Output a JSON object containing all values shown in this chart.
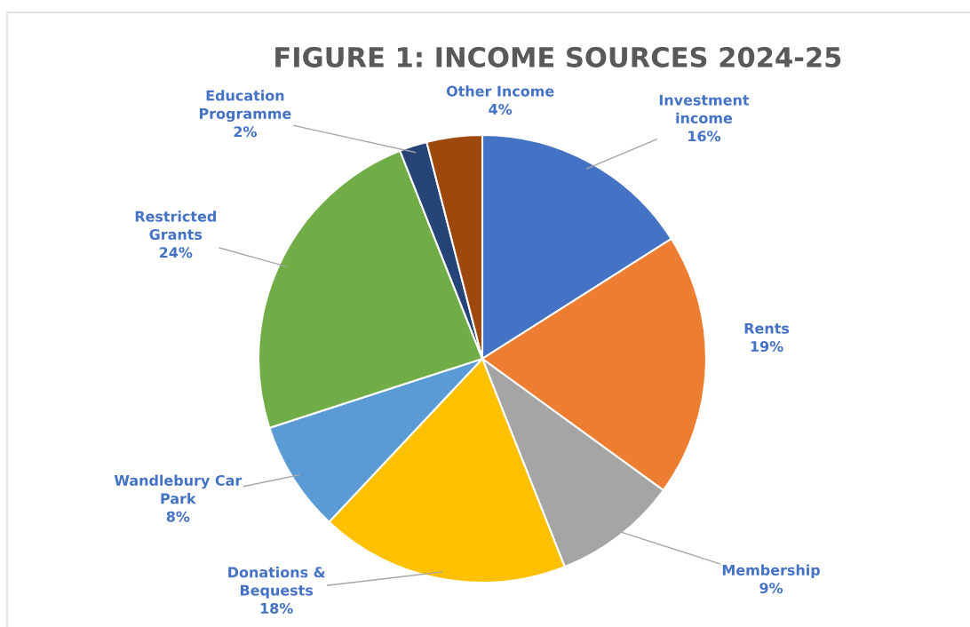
{
  "chart_data": {
    "type": "pie",
    "title": "FIGURE 1: INCOME SOURCES 2024-25",
    "categories": [
      "Investment\nincome",
      "Rents",
      "Membership",
      "Donations &\nBequests",
      "Wandlebury Car\nPark",
      "Restricted\nGrants",
      "Education\nProgramme",
      "Other Income"
    ],
    "values": [
      16,
      19,
      9,
      18,
      8,
      24,
      2,
      4
    ],
    "value_labels": [
      "16%",
      "19%",
      "9%",
      "18%",
      "8%",
      "24%",
      "2%",
      "4%"
    ],
    "colors": [
      "#4472c4",
      "#ed7d31",
      "#a5a5a5",
      "#ffc000",
      "#5b9bd5",
      "#70ad47",
      "#264478",
      "#9e480e"
    ],
    "legend": false
  }
}
